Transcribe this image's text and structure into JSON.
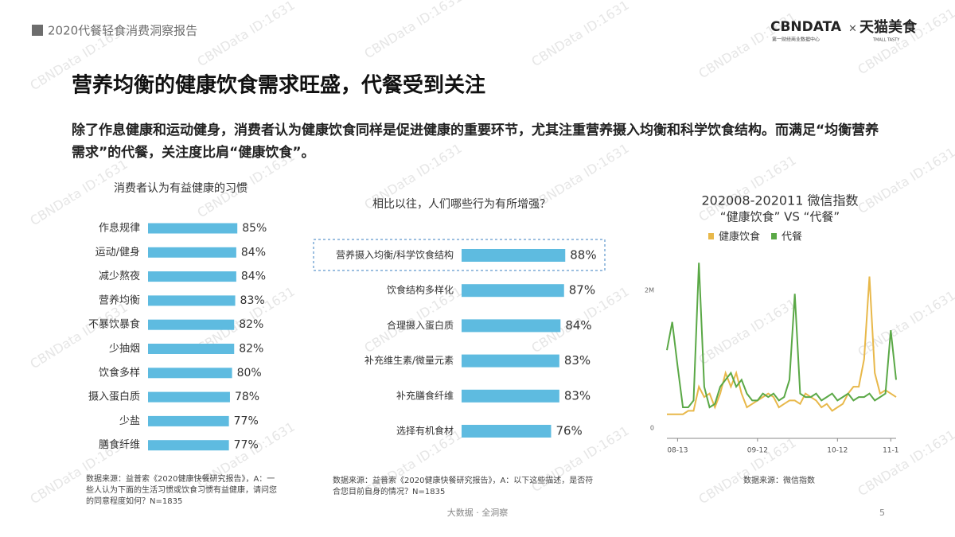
{
  "header": "2020代餐轻食消费洞察报告",
  "logo": {
    "cbn": "CBNDATA",
    "times": "×",
    "tmall": "天猫美食",
    "cbn_sub": "第一财经商业数据中心",
    "tmall_sub": "TMALL TASTY"
  },
  "watermark": "CBNData ID:1631",
  "title": "营养均衡的健康饮食需求旺盛，代餐受到关注",
  "body": "除了作息健康和运动健身，消费者认为健康饮食同样是促进健康的重要环节，尤其注重营养摄入均衡和科学饮食结构。而满足“均衡营养需求”的代餐，关注度比肩“健康饮食”。",
  "footer": "大数据 · 全洞察",
  "page_number": "5",
  "chart_data": [
    {
      "type": "bar",
      "horizontal": true,
      "title": "消费者认为有益健康的习惯",
      "color": "#5ebbe0",
      "categories": [
        "作息规律",
        "运动/健身",
        "减少熬夜",
        "营养均衡",
        "不暴饮暴食",
        "少抽烟",
        "饮食多样",
        "摄入蛋白质",
        "少盐",
        "膳食纤维"
      ],
      "values": [
        85,
        84,
        84,
        83,
        82,
        82,
        80,
        78,
        77,
        77
      ],
      "value_labels": [
        "85%",
        "84%",
        "84%",
        "83%",
        "82%",
        "82%",
        "80%",
        "78%",
        "77%",
        "77%"
      ],
      "source": "数据来源：益普索《2020健康快餐研究报告》，A：一些人认为下面的生活习惯或饮食习惯有益健康，请问您的同意程度如何？N=1835"
    },
    {
      "type": "bar",
      "horizontal": true,
      "title": "相比以往，人们哪些行为有所增强？",
      "color": "#5ebbe0",
      "categories": [
        "营养摄入均衡/科学饮食结构",
        "饮食结构多样化",
        "合理摄入蛋白质",
        "补充维生素/微量元素",
        "补充膳食纤维",
        "选择有机食材"
      ],
      "values": [
        88,
        87,
        84,
        83,
        83,
        76
      ],
      "value_labels": [
        "88%",
        "87%",
        "84%",
        "83%",
        "83%",
        "76%"
      ],
      "source": "数据来源：益普索《2020健康快餐研究报告》，A：以下这些描述，是否符合您目前自身的情况？N=1835"
    },
    {
      "type": "line",
      "title": "202008-202011 微信指数",
      "subtitle": "“健康饮食” VS “代餐”",
      "x": [
        "08-09",
        "08-11",
        "08-13",
        "08-15",
        "08-17",
        "08-19",
        "08-21",
        "08-23",
        "08-25",
        "08-27",
        "08-29",
        "08-31",
        "09-02",
        "09-04",
        "09-06",
        "09-08",
        "09-10",
        "09-12",
        "09-14",
        "09-16",
        "09-18",
        "09-20",
        "09-22",
        "09-24",
        "09-26",
        "09-28",
        "09-30",
        "10-02",
        "10-04",
        "10-06",
        "10-08",
        "10-10",
        "10-12",
        "10-14",
        "10-16",
        "10-18",
        "10-20",
        "10-22",
        "10-24",
        "10-26",
        "10-28",
        "10-30",
        "11-01",
        "11-03"
      ],
      "series": [
        {
          "name": "健康饮食",
          "color": "#e8b84a",
          "values": [
            200000,
            200000,
            200000,
            200000,
            250000,
            250000,
            600000,
            450000,
            500000,
            300000,
            500000,
            800000,
            600000,
            800000,
            500000,
            300000,
            350000,
            400000,
            450000,
            500000,
            450000,
            300000,
            350000,
            400000,
            400000,
            350000,
            500000,
            450000,
            400000,
            300000,
            350000,
            250000,
            300000,
            350000,
            500000,
            600000,
            600000,
            1000000,
            2200000,
            800000,
            500000,
            550000,
            500000,
            450000
          ]
        },
        {
          "name": "代餐",
          "color": "#5aa846",
          "values": [
            1130000,
            1540000,
            900000,
            300000,
            300000,
            400000,
            2400000,
            600000,
            300000,
            350000,
            600000,
            700000,
            800000,
            600000,
            700000,
            500000,
            400000,
            400000,
            500000,
            450000,
            500000,
            400000,
            450000,
            700000,
            1950000,
            500000,
            450000,
            450000,
            500000,
            400000,
            450000,
            500000,
            400000,
            450000,
            500000,
            400000,
            450000,
            450000,
            500000,
            400000,
            450000,
            500000,
            1420000,
            700000
          ]
        }
      ],
      "ylim": [
        0,
        2600000
      ],
      "yticks": [
        0,
        {
          "value": 2000000,
          "label": "2M"
        }
      ],
      "xticks": [
        "08-13",
        "09-12",
        "10-12",
        {
          "value": "11-01",
          "label": "11-1"
        }
      ],
      "legend": "top",
      "source": "数据来源：微信指数"
    }
  ]
}
